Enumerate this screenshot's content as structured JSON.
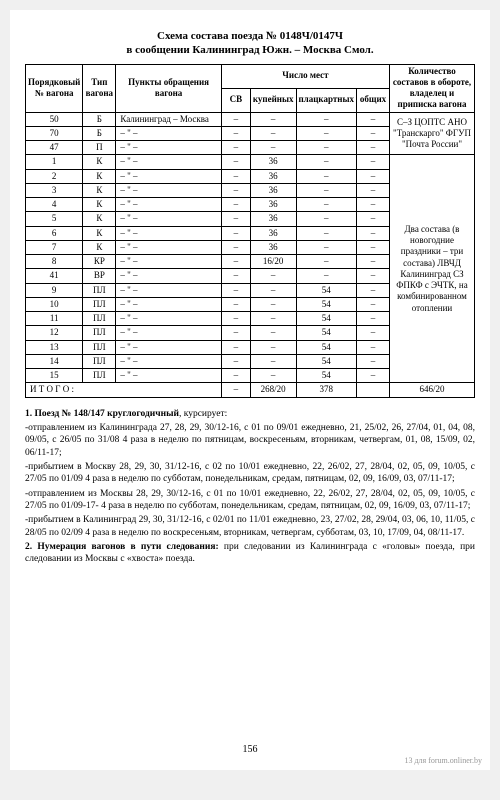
{
  "title_line1": "Схема состава поезда № 0148Ч/0147Ч",
  "title_line2": "в сообщении Калининград Южн. – Москва Смол.",
  "headers": {
    "order": "Порядковый № вагона",
    "type": "Тип вагона",
    "circ": "Пункты обращения вагона",
    "places": "Число мест",
    "sv": "СВ",
    "kupe": "купейных",
    "plats": "плацкартных",
    "obsh": "общих",
    "info": "Количество составов в обороте, владелец и приписка вагона"
  },
  "rows": [
    {
      "n": "50",
      "t": "Б",
      "c": "Калининград – Москва",
      "sv": "–",
      "k": "–",
      "p": "–",
      "o": "–"
    },
    {
      "n": "70",
      "t": "Б",
      "c": "– \" –",
      "sv": "–",
      "k": "–",
      "p": "–",
      "o": "–"
    },
    {
      "n": "47",
      "t": "П",
      "c": "– \" –",
      "sv": "–",
      "k": "–",
      "p": "–",
      "o": "–"
    },
    {
      "n": "1",
      "t": "К",
      "c": "– \" –",
      "sv": "–",
      "k": "36",
      "p": "–",
      "o": "–"
    },
    {
      "n": "2",
      "t": "К",
      "c": "– \" –",
      "sv": "–",
      "k": "36",
      "p": "–",
      "o": "–"
    },
    {
      "n": "3",
      "t": "К",
      "c": "– \" –",
      "sv": "–",
      "k": "36",
      "p": "–",
      "o": "–"
    },
    {
      "n": "4",
      "t": "К",
      "c": "– \" –",
      "sv": "–",
      "k": "36",
      "p": "–",
      "o": "–"
    },
    {
      "n": "5",
      "t": "К",
      "c": "– \" –",
      "sv": "–",
      "k": "36",
      "p": "–",
      "o": "–"
    },
    {
      "n": "6",
      "t": "К",
      "c": "– \" –",
      "sv": "–",
      "k": "36",
      "p": "–",
      "o": "–"
    },
    {
      "n": "7",
      "t": "К",
      "c": "– \" –",
      "sv": "–",
      "k": "36",
      "p": "–",
      "o": "–"
    },
    {
      "n": "8",
      "t": "КР",
      "c": "– \" –",
      "sv": "–",
      "k": "16/20",
      "p": "–",
      "o": "–"
    },
    {
      "n": "41",
      "t": "ВР",
      "c": "– \" –",
      "sv": "–",
      "k": "–",
      "p": "–",
      "o": "–"
    },
    {
      "n": "9",
      "t": "ПЛ",
      "c": "– \" –",
      "sv": "–",
      "k": "–",
      "p": "54",
      "o": "–"
    },
    {
      "n": "10",
      "t": "ПЛ",
      "c": "– \" –",
      "sv": "–",
      "k": "–",
      "p": "54",
      "o": "–"
    },
    {
      "n": "11",
      "t": "ПЛ",
      "c": "– \" –",
      "sv": "–",
      "k": "–",
      "p": "54",
      "o": "–"
    },
    {
      "n": "12",
      "t": "ПЛ",
      "c": "– \" –",
      "sv": "–",
      "k": "–",
      "p": "54",
      "o": "–"
    },
    {
      "n": "13",
      "t": "ПЛ",
      "c": "– \" –",
      "sv": "–",
      "k": "–",
      "p": "54",
      "o": "–"
    },
    {
      "n": "14",
      "t": "ПЛ",
      "c": "– \" –",
      "sv": "–",
      "k": "–",
      "p": "54",
      "o": "–"
    },
    {
      "n": "15",
      "t": "ПЛ",
      "c": "– \" –",
      "sv": "–",
      "k": "–",
      "p": "54",
      "o": "–"
    }
  ],
  "info_cells": [
    "С–З ЦОПТС АНО \"Транскарго\" ФГУП \"Почта России\"",
    "Два состава (в новогодние праздники – три состава) ЛВЧД Калининград СЗ ФПКФ с ЭЧТК, на комбинированном отоплении"
  ],
  "total": {
    "label": "И Т О Г О :",
    "sv": "–",
    "k": "268/20",
    "p": "378",
    "o": "",
    "info": "646/20"
  },
  "notes": [
    "<b>1. Поезд № 148/147 круглогодичный</b>, курсирует:",
    "-отправлением из Калининграда 27, 28, 29, 30/12-16, с 01 по 09/01 ежедневно, 21, 25/02, 26, 27/04, 01, 04, 08, 09/05, с 26/05 по 31/08  4 раза в неделю по пятницам, воскресеньям, вторникам, четвергам, 01, 08, 15/09, 02, 06/11-17;",
    "-прибытием в Москву 28, 29, 30, 31/12-16, с 02 по 10/01 ежедневно, 22, 26/02, 27, 28/04, 02, 05, 09, 10/05, с 27/05 по 01/09  4 раза в неделю по субботам, понедельникам, средам, пятницам, 02, 09, 16/09, 03, 07/11-17;",
    "-отправлением из Москвы 28, 29, 30/12-16, с 01 по 10/01 ежедневно, 22, 26/02, 27, 28/04, 02, 05, 09, 10/05, с 27/05 по 01/09-17-  4 раза в неделю по субботам, понедельникам, средам, пятницам, 02, 09, 16/09, 03, 07/11-17;",
    "-прибытием в Калининград 29, 30, 31/12-16, с 02/01 по 11/01 ежедневно, 23, 27/02, 28, 29/04, 03, 06, 10, 11/05, с 28/05 по 02/09  4 раза в неделю по воскресеньям, вторникам, четвергам, субботам, 03, 10, 17/09, 04, 08/11-17.",
    "<b>2. Нумерация вагонов в пути следования:</b> при следовании из Калининграда с «головы» поезда, при следовании из Москвы с «хвоста» поезда."
  ],
  "page_number": "156",
  "watermark": "13 для forum.onliner.by"
}
